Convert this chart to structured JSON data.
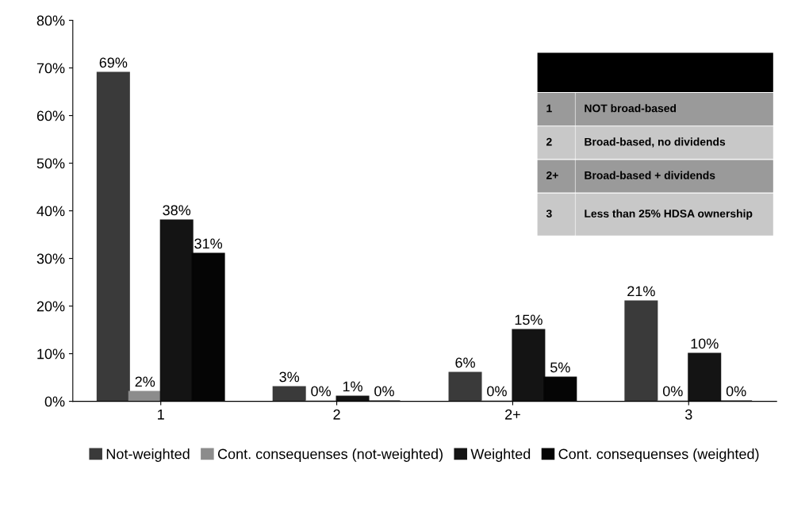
{
  "chart_data": {
    "type": "bar",
    "categories": [
      "1",
      "2",
      "2+",
      "3"
    ],
    "series": [
      {
        "name": "Not-weighted",
        "color": "#3a3a3a",
        "values": [
          69,
          3,
          6,
          21
        ],
        "value_labels": [
          "69%",
          "3%",
          "6%",
          "21%"
        ]
      },
      {
        "name": "Cont. consequenses (not-weighted)",
        "color": "#8c8c8c",
        "values": [
          2,
          0,
          0,
          0
        ],
        "value_labels": [
          "2%",
          "0%",
          "0%",
          "0%"
        ]
      },
      {
        "name": "Weighted",
        "color": "#141414",
        "values": [
          38,
          1,
          15,
          10
        ],
        "value_labels": [
          "38%",
          "1%",
          "15%",
          "10%"
        ]
      },
      {
        "name": "Cont. consequenses (weighted)",
        "color": "#050505",
        "values": [
          31,
          0,
          5,
          0
        ],
        "value_labels": [
          "31%",
          "0%",
          "5%",
          "0%"
        ]
      }
    ],
    "ylim": [
      0,
      80
    ],
    "yticks": [
      {
        "value": 0,
        "label": "0%"
      },
      {
        "value": 10,
        "label": "10%"
      },
      {
        "value": 20,
        "label": "20%"
      },
      {
        "value": 30,
        "label": "30%"
      },
      {
        "value": 40,
        "label": "40%"
      },
      {
        "value": 50,
        "label": "50%"
      },
      {
        "value": 60,
        "label": "60%"
      },
      {
        "value": 70,
        "label": "70%"
      },
      {
        "value": 80,
        "label": "80%"
      }
    ],
    "grid": false,
    "legend": "bottom",
    "annotations": [
      "1",
      "NOT broad-based",
      "2",
      "Broad-based, no dividends",
      "2+",
      "Broad-based + dividends",
      "3",
      "Less than 25% HDSA ownership"
    ]
  }
}
